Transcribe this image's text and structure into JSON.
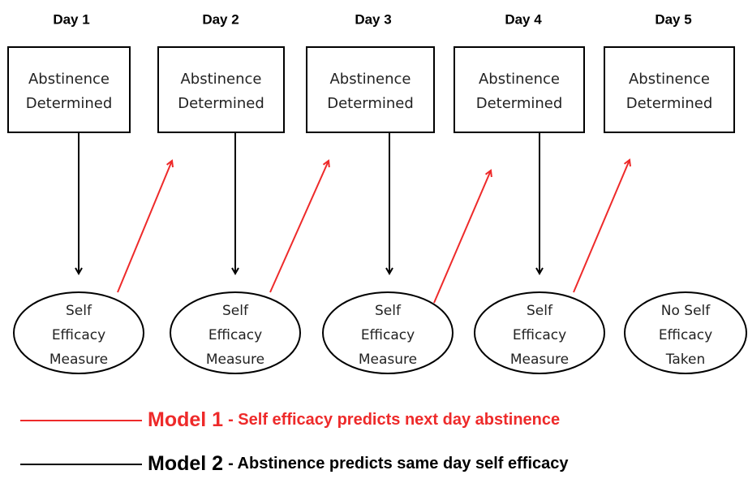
{
  "days": [
    {
      "label": "Day 1",
      "box": [
        "Abstinence",
        "Determined"
      ],
      "ellipse": [
        "Self",
        "Efficacy",
        "Measure"
      ]
    },
    {
      "label": "Day 2",
      "box": [
        "Abstinence",
        "Determined"
      ],
      "ellipse": [
        "Self",
        "Efficacy",
        "Measure"
      ]
    },
    {
      "label": "Day 3",
      "box": [
        "Abstinence",
        "Determined"
      ],
      "ellipse": [
        "Self",
        "Efficacy",
        "Measure"
      ]
    },
    {
      "label": "Day 4",
      "box": [
        "Abstinence",
        "Determined"
      ],
      "ellipse": [
        "Self",
        "Efficacy",
        "Measure"
      ]
    },
    {
      "label": "Day 5",
      "box": [
        "Abstinence",
        "Determined"
      ],
      "ellipse": [
        "No Self",
        "Efficacy",
        "Taken"
      ]
    }
  ],
  "legend": [
    {
      "model": "Model 1",
      "text": "- Self efficacy predicts next day abstinence"
    },
    {
      "model": "Model 2",
      "text": "- Abstinence predicts same day self efficacy"
    }
  ]
}
